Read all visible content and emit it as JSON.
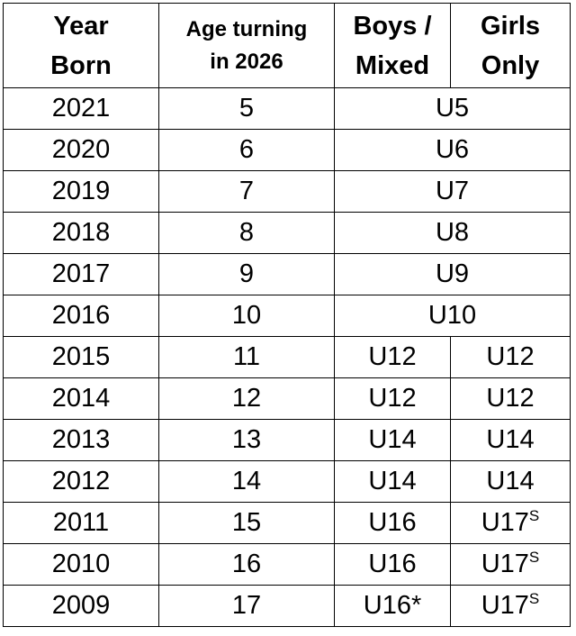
{
  "table": {
    "header": [
      [
        "Year",
        "Born"
      ],
      [
        "Age turning",
        "in 2026"
      ],
      [
        "Boys /",
        "Mixed"
      ],
      [
        "Girls",
        "Only"
      ]
    ],
    "rows": [
      {
        "year": "2021",
        "age": "5",
        "combined": "U5"
      },
      {
        "year": "2020",
        "age": "6",
        "combined": "U6"
      },
      {
        "year": "2019",
        "age": "7",
        "combined": "U7"
      },
      {
        "year": "2018",
        "age": "8",
        "combined": "U8"
      },
      {
        "year": "2017",
        "age": "9",
        "combined": "U9"
      },
      {
        "year": "2016",
        "age": "10",
        "combined": "U10"
      },
      {
        "year": "2015",
        "age": "11",
        "boys": "U12",
        "girls": "U12"
      },
      {
        "year": "2014",
        "age": "12",
        "boys": "U12",
        "girls": "U12"
      },
      {
        "year": "2013",
        "age": "13",
        "boys": "U14",
        "girls": "U14"
      },
      {
        "year": "2012",
        "age": "14",
        "boys": "U14",
        "girls": "U14"
      },
      {
        "year": "2011",
        "age": "15",
        "boys": "U16",
        "girls": "U17",
        "girls_sup": "S"
      },
      {
        "year": "2010",
        "age": "16",
        "boys": "U16",
        "girls": "U17",
        "girls_sup": "S"
      },
      {
        "year": "2009",
        "age": "17",
        "boys": "U16*",
        "girls": "U17",
        "girls_sup": "S"
      }
    ]
  }
}
